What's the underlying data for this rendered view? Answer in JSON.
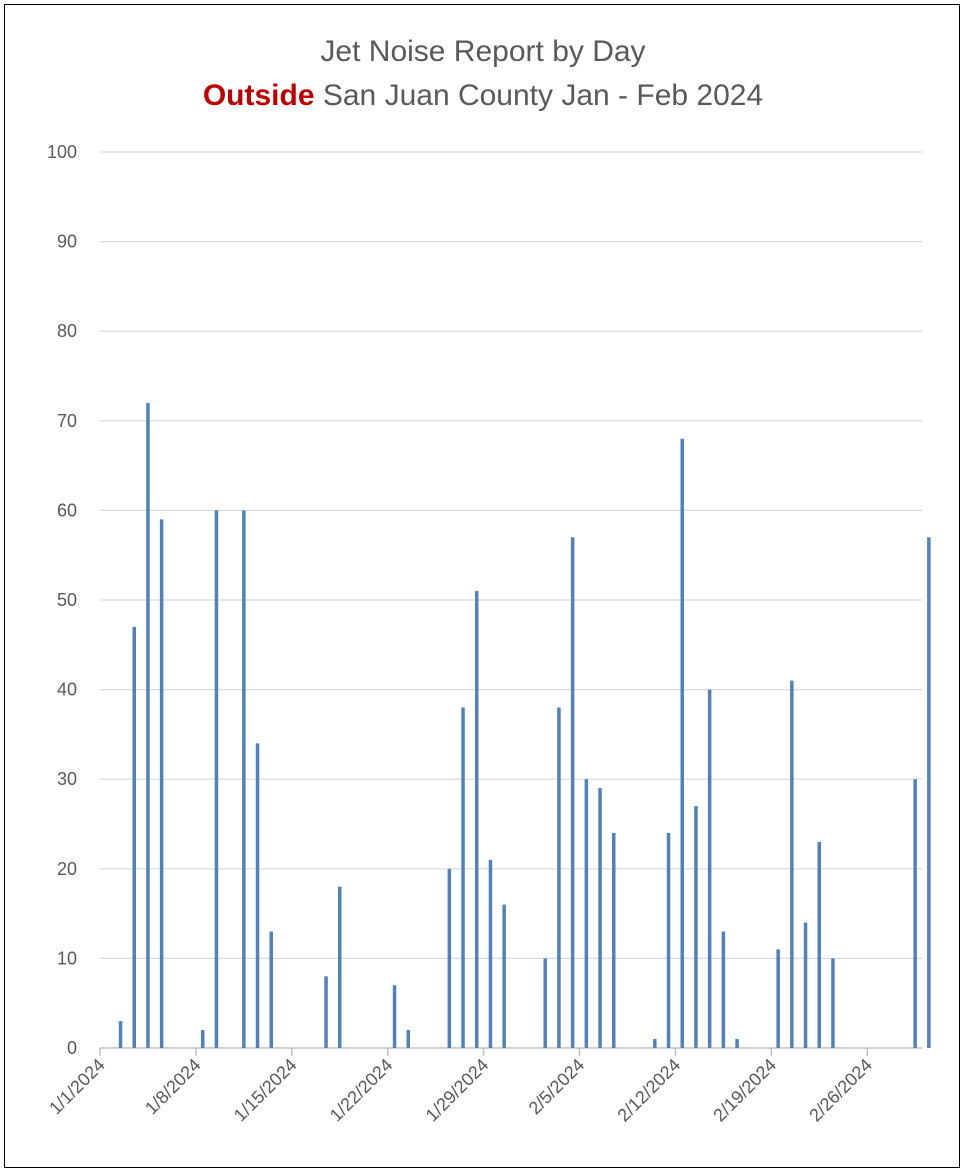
{
  "chart_data": {
    "type": "bar",
    "title": "Jet Noise Report by Day",
    "subtitle_highlight": "Outside",
    "subtitle_rest": "San Juan County Jan - Feb 2024",
    "xlabel": "",
    "ylabel": "",
    "ylim": [
      0,
      100
    ],
    "yticks": [
      0,
      10,
      20,
      30,
      40,
      50,
      60,
      70,
      80,
      90,
      100
    ],
    "grid": true,
    "legend": "none",
    "x_start": "1/1/2024",
    "x_tick_labels": [
      "1/1/2024",
      "1/8/2024",
      "1/15/2024",
      "1/22/2024",
      "1/29/2024",
      "2/5/2024",
      "2/12/2024",
      "2/19/2024",
      "2/26/2024"
    ],
    "x": [
      "1/1/2024",
      "1/2/2024",
      "1/3/2024",
      "1/4/2024",
      "1/5/2024",
      "1/6/2024",
      "1/7/2024",
      "1/8/2024",
      "1/9/2024",
      "1/10/2024",
      "1/11/2024",
      "1/12/2024",
      "1/13/2024",
      "1/14/2024",
      "1/15/2024",
      "1/16/2024",
      "1/17/2024",
      "1/18/2024",
      "1/19/2024",
      "1/20/2024",
      "1/21/2024",
      "1/22/2024",
      "1/23/2024",
      "1/24/2024",
      "1/25/2024",
      "1/26/2024",
      "1/27/2024",
      "1/28/2024",
      "1/29/2024",
      "1/30/2024",
      "1/31/2024",
      "2/1/2024",
      "2/2/2024",
      "2/3/2024",
      "2/4/2024",
      "2/5/2024",
      "2/6/2024",
      "2/7/2024",
      "2/8/2024",
      "2/9/2024",
      "2/10/2024",
      "2/11/2024",
      "2/12/2024",
      "2/13/2024",
      "2/14/2024",
      "2/15/2024",
      "2/16/2024",
      "2/17/2024",
      "2/18/2024",
      "2/19/2024",
      "2/20/2024",
      "2/21/2024",
      "2/22/2024",
      "2/23/2024",
      "2/24/2024",
      "2/25/2024",
      "2/26/2024",
      "2/27/2024",
      "2/28/2024",
      "2/29/2024",
      "3/1/2024"
    ],
    "values": [
      0,
      3,
      47,
      72,
      59,
      0,
      0,
      2,
      60,
      0,
      60,
      34,
      13,
      0,
      0,
      0,
      8,
      18,
      0,
      0,
      0,
      7,
      2,
      0,
      0,
      20,
      38,
      51,
      21,
      16,
      0,
      0,
      10,
      38,
      57,
      30,
      29,
      24,
      0,
      0,
      1,
      24,
      68,
      27,
      40,
      13,
      1,
      0,
      0,
      11,
      41,
      14,
      23,
      10,
      0,
      0,
      0,
      0,
      0,
      30,
      57
    ],
    "series_color": "#4f81bd"
  }
}
